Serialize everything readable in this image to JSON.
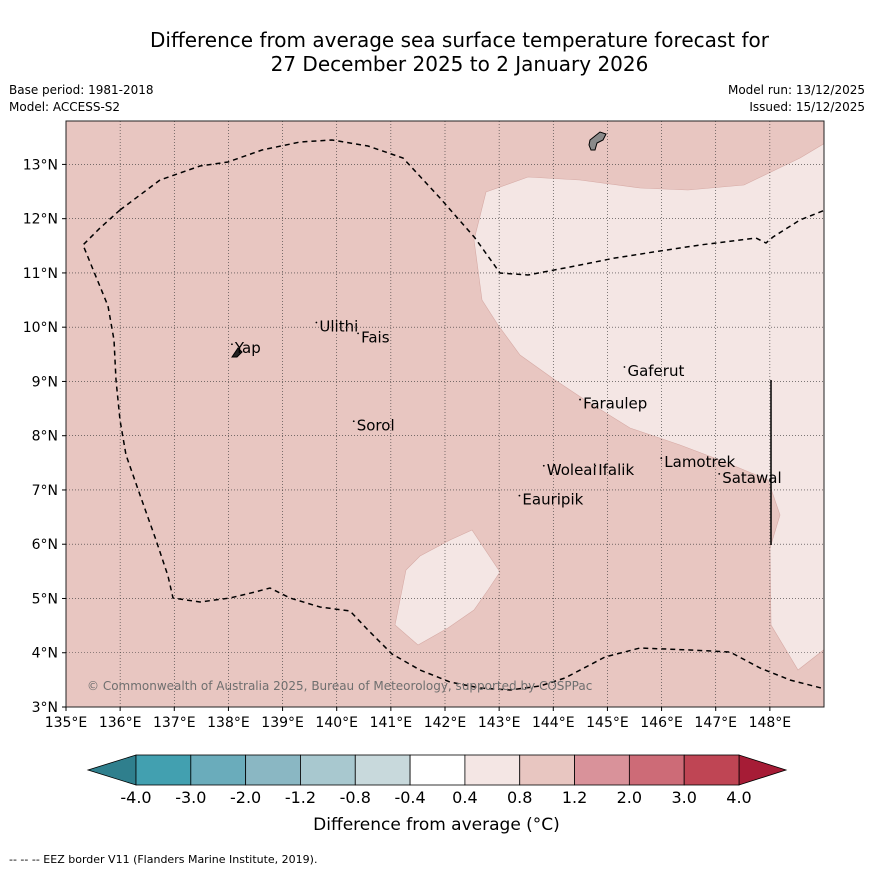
{
  "title": {
    "line1": "Difference from average sea surface temperature forecast for",
    "line2": "27 December 2025 to 2 January 2026"
  },
  "meta": {
    "base_period": "Base period: 1981-2018",
    "model": "Model: ACCESS-S2",
    "model_run": "Model run: 13/12/2025",
    "issued": "Issued: 15/12/2025"
  },
  "map": {
    "lon_range": [
      135,
      149
    ],
    "lat_range": [
      3,
      13.8
    ],
    "lon_ticks": [
      "135°E",
      "136°E",
      "137°E",
      "138°E",
      "139°E",
      "140°E",
      "141°E",
      "142°E",
      "143°E",
      "144°E",
      "145°E",
      "146°E",
      "147°E",
      "148°E"
    ],
    "lat_ticks": [
      "3°N",
      "4°N",
      "5°N",
      "6°N",
      "7°N",
      "8°N",
      "9°N",
      "10°N",
      "11°N",
      "12°N",
      "13°N"
    ],
    "background_color": "#e8c6c1",
    "warm_patch_color": "#f4e6e4",
    "copyright": "© Commonwealth of Australia 2025, Bureau of Meteorology, supported by COSPPac",
    "places": [
      {
        "name": "Yap",
        "lon": 138.12,
        "lat": 9.52
      },
      {
        "name": "Ulithi",
        "lon": 139.68,
        "lat": 9.92
      },
      {
        "name": "Fais",
        "lon": 140.45,
        "lat": 9.72
      },
      {
        "name": "Sorol",
        "lon": 140.37,
        "lat": 8.1
      },
      {
        "name": "Gaferut",
        "lon": 145.37,
        "lat": 9.1
      },
      {
        "name": "Faraulep",
        "lon": 144.55,
        "lat": 8.5
      },
      {
        "name": "Woleai",
        "lon": 143.88,
        "lat": 7.28
      },
      {
        "name": "Ifalik",
        "lon": 144.83,
        "lat": 7.28
      },
      {
        "name": "Lamotrek",
        "lon": 146.05,
        "lat": 7.42
      },
      {
        "name": "Satawal",
        "lon": 147.12,
        "lat": 7.13
      },
      {
        "name": "Eauripik",
        "lon": 143.43,
        "lat": 6.73
      }
    ]
  },
  "colorbar": {
    "ticks": [
      "-4.0",
      "-3.0",
      "-2.0",
      "-1.2",
      "-0.8",
      "-0.4",
      "0.4",
      "0.8",
      "1.2",
      "2.0",
      "3.0",
      "4.0"
    ],
    "colors": [
      "#42a0b0",
      "#6aacbb",
      "#8ab7c3",
      "#a8c8cf",
      "#c8d9dc",
      "#ffffff",
      "#f4e6e4",
      "#e8c6c1",
      "#d9929a",
      "#cd6b77",
      "#bf4554"
    ],
    "under_color": "#2f7f8d",
    "over_color": "#a61c36",
    "label": "Difference from average (°C)"
  },
  "footnote": "--  --  -- EEZ border V11 (Flanders Marine Institute, 2019)."
}
